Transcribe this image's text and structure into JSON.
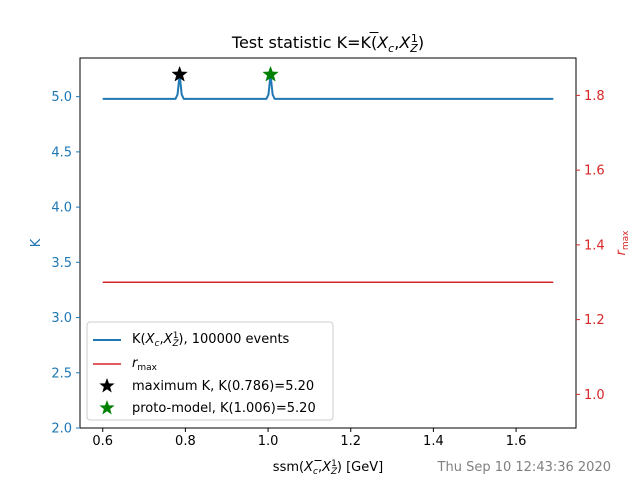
{
  "chart_data": {
    "type": "line",
    "title_main": "Test statistic K=K(",
    "title_xbar": "X",
    "title_xsub": "c",
    "title_x2": "X",
    "title_x2sub": "Z",
    "title_x2sup": "1",
    "xlabel_pre": "ssm(",
    "xlabel_post": ") [GeV]",
    "ylabel": "K",
    "y2label_main": "r",
    "y2label_sub": "max",
    "xlim": [
      0.545,
      1.745
    ],
    "ylim": [
      2.0,
      5.35
    ],
    "y2lim": [
      0.91,
      1.9
    ],
    "xticks": [
      0.6,
      0.8,
      1.0,
      1.2,
      1.4,
      1.6
    ],
    "yticks": [
      2.0,
      2.5,
      3.0,
      3.5,
      4.0,
      4.5,
      5.0
    ],
    "y2ticks": [
      1.0,
      1.2,
      1.4,
      1.6,
      1.8
    ],
    "timestamp": "Thu Sep 10 12:43:36 2020",
    "colors": {
      "k_line": "#1f77b4",
      "rmax_line": "#d62728",
      "max_marker": "#000000",
      "proto_marker": "#008000",
      "axis_left": "#1f77b4",
      "axis_right": "#d62728",
      "timestamp": "#808080"
    },
    "series": [
      {
        "name_prefix": "K(",
        "name_suffix": "), 100000 events",
        "axis": "left",
        "x": [
          0.6,
          0.776,
          0.781,
          0.786,
          0.791,
          0.796,
          0.996,
          1.001,
          1.006,
          1.011,
          1.016,
          1.69
        ],
        "y": [
          4.98,
          4.98,
          5.02,
          5.2,
          5.02,
          4.98,
          4.98,
          5.02,
          5.2,
          5.02,
          4.98,
          4.98
        ]
      },
      {
        "name": "r_max",
        "axis": "right",
        "x": [
          0.6,
          1.69
        ],
        "y": [
          1.3,
          1.3
        ]
      }
    ],
    "markers": [
      {
        "name": "maximum K, K(0.786)=5.20",
        "x": 0.786,
        "y": 5.2,
        "color": "#000000"
      },
      {
        "name": "proto-model, K(1.006)=5.20",
        "x": 1.006,
        "y": 5.2,
        "color": "#008000"
      }
    ],
    "legend_position": "lower-left"
  }
}
